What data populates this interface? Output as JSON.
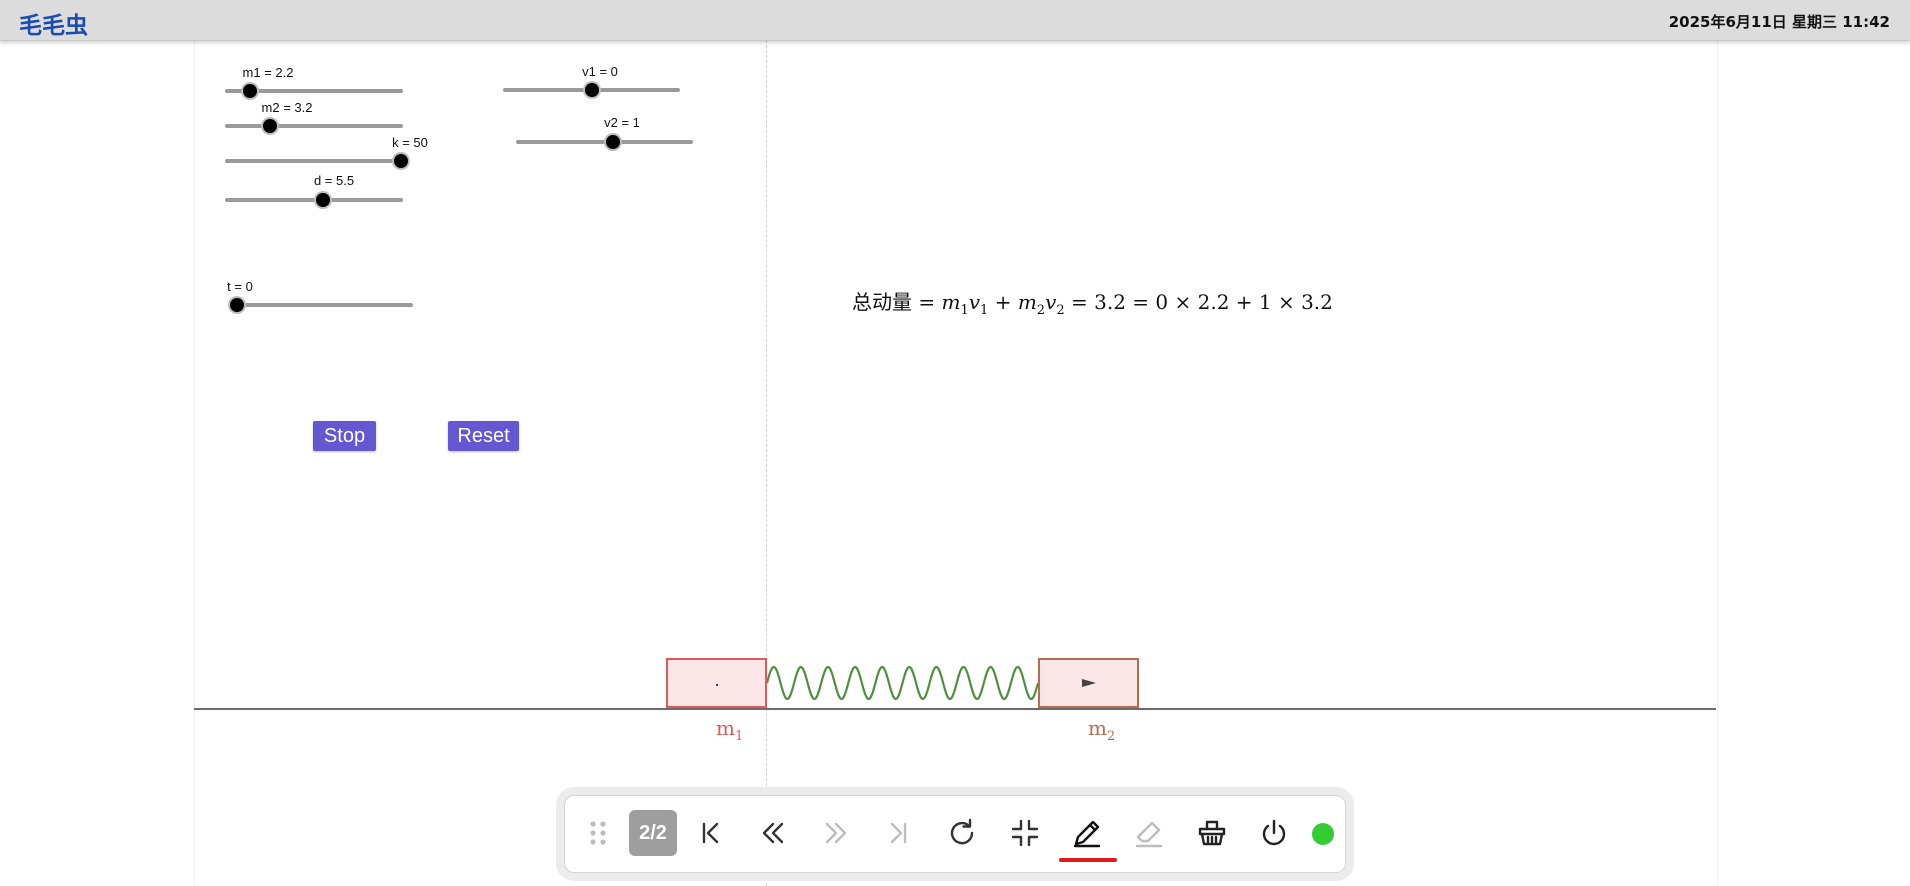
{
  "app": {
    "title": "毛毛虫",
    "datetime": "2025年6月11日 星期三 11:42"
  },
  "sliders": {
    "m1": {
      "label": "m1 = 2.2",
      "fraction": 0.14
    },
    "m2": {
      "label": "m2 = 3.2",
      "fraction": 0.25
    },
    "k": {
      "label": "k = 50",
      "fraction": 1.0
    },
    "d": {
      "label": "d = 5.5",
      "fraction": 0.55
    },
    "v1": {
      "label": "v1 = 0",
      "fraction": 0.5
    },
    "v2": {
      "label": "v2 = 1",
      "fraction": 0.55
    },
    "t": {
      "label": "t = 0",
      "fraction": 0.0
    }
  },
  "buttons": {
    "stop": "Stop",
    "reset": "Reset"
  },
  "formula": {
    "label": "总动量",
    "expression_parts": {
      "eq1": "=",
      "m1": "m",
      "sub1": "1",
      "v1": "v",
      "sub1b": "1",
      "plus": "+",
      "m2": "m",
      "sub2": "2",
      "v2": "v",
      "sub2b": "2",
      "rest": "= 3.2 = 0 × 2.2 + 1 × 3.2"
    }
  },
  "scene": {
    "m1_label": "m",
    "m1_sub": "1",
    "m1_color": "#e05858",
    "m2_label": "m",
    "m2_sub": "2",
    "m2_color": "#b86b4f",
    "spring_color": "#4f8f3f"
  },
  "toolbar": {
    "page_indicator": "2/2",
    "items": [
      "drag-handle-icon",
      "first-page-icon",
      "previous-icon",
      "next-icon",
      "last-page-icon",
      "refresh-icon",
      "exit-fullscreen-icon",
      "pen-icon",
      "eraser-icon",
      "clear-basket-icon",
      "power-icon"
    ],
    "status_color": "#33cc33",
    "active_tool": "pen"
  }
}
